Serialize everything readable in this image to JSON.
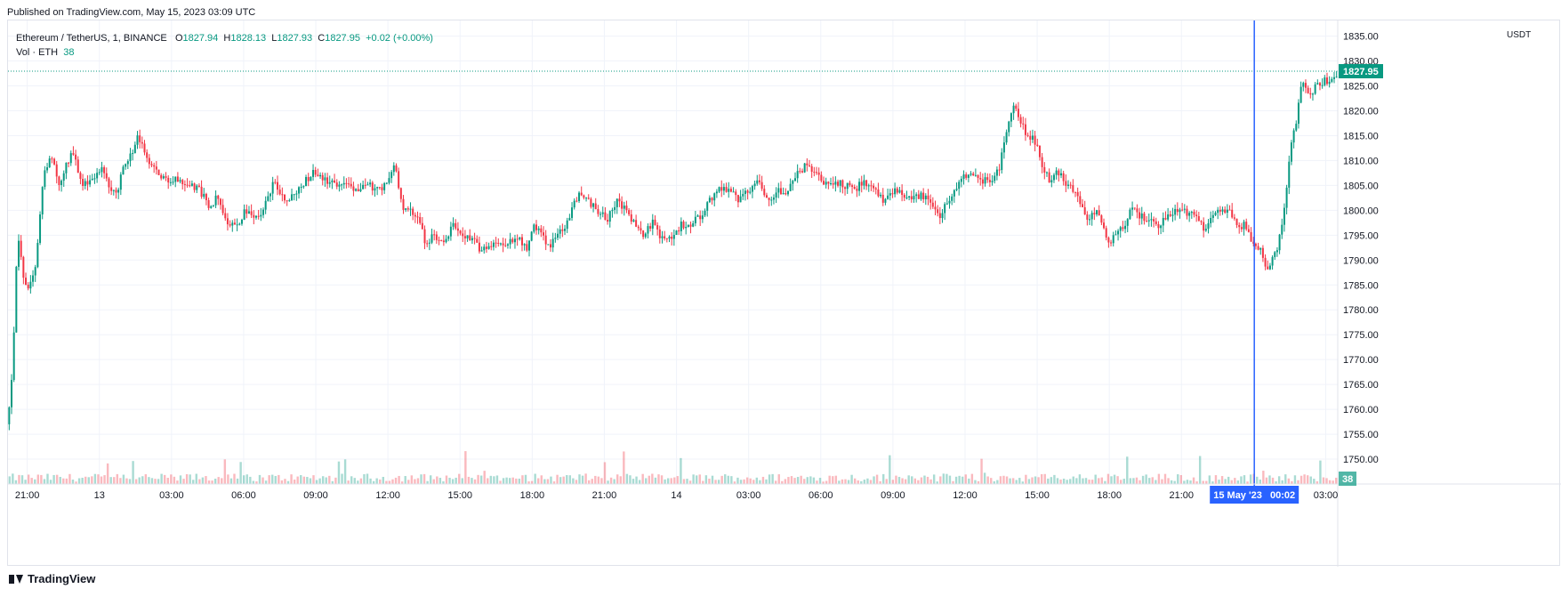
{
  "header": {
    "published": "Published on TradingView.com, May 15, 2023 03:09 UTC"
  },
  "legend": {
    "symbol": "Ethereum / TetherUS, 1, BINANCE",
    "o_label": "O",
    "o_value": "1827.94",
    "h_label": "H",
    "h_value": "1828.13",
    "l_label": "L",
    "l_value": "1827.93",
    "c_label": "C",
    "c_value": "1827.95",
    "change": "+0.02 (+0.00%)",
    "vol_label": "Vol · ETH",
    "vol_value": "38"
  },
  "price_axis": {
    "unit": "USDT",
    "last_price_label": "1827.95",
    "last_volume_label": "38"
  },
  "time_axis": {
    "crosshair_label": "15 May '23   00:02"
  },
  "footer": {
    "brand": "TradingView"
  },
  "colors": {
    "up": "#089981",
    "down": "#f23645",
    "crosshair": "#2962ff",
    "grid": "#f0f3fa",
    "last_price_line": "#089981"
  },
  "chart_data": {
    "type": "candlestick",
    "title": "Ethereum / TetherUS, 1, BINANCE",
    "ylabel": "USDT",
    "ylim": [
      1745,
      1836
    ],
    "y_ticks": [
      "1835.00",
      "1830.00",
      "1825.00",
      "1820.00",
      "1815.00",
      "1810.00",
      "1805.00",
      "1800.00",
      "1795.00",
      "1790.00",
      "1785.00",
      "1780.00",
      "1775.00",
      "1770.00",
      "1765.00",
      "1760.00",
      "1755.00",
      "1750.00"
    ],
    "x_ticks": [
      "21:00",
      "13",
      "03:00",
      "06:00",
      "09:00",
      "12:00",
      "15:00",
      "18:00",
      "21:00",
      "14",
      "03:00",
      "06:00",
      "09:00",
      "12:00",
      "15:00",
      "18:00",
      "21:00",
      "00:02",
      "03:00"
    ],
    "x_tick_hours": [
      0,
      3,
      6,
      9,
      12,
      15,
      18,
      21,
      24,
      27,
      30,
      33,
      36,
      39,
      42,
      45,
      48,
      51.03,
      54
    ],
    "x_range_hours": [
      -0.8,
      54.5
    ],
    "crosshair_hour": 51.03,
    "series": [
      {
        "name": "ETH/USDT price",
        "type": "candlestick-path",
        "points": [
          [
            -0.8,
            1757
          ],
          [
            -0.6,
            1770
          ],
          [
            -0.4,
            1795
          ],
          [
            -0.2,
            1788
          ],
          [
            0.0,
            1783
          ],
          [
            0.3,
            1787
          ],
          [
            0.7,
            1808
          ],
          [
            1.0,
            1811
          ],
          [
            1.3,
            1805
          ],
          [
            1.6,
            1809
          ],
          [
            1.9,
            1812
          ],
          [
            2.2,
            1806
          ],
          [
            2.5,
            1805
          ],
          [
            2.8,
            1807
          ],
          [
            3.1,
            1808
          ],
          [
            3.4,
            1805
          ],
          [
            3.7,
            1803
          ],
          [
            4.0,
            1809
          ],
          [
            4.3,
            1811
          ],
          [
            4.6,
            1815
          ],
          [
            4.9,
            1811
          ],
          [
            5.3,
            1808
          ],
          [
            5.8,
            1806
          ],
          [
            6.3,
            1806
          ],
          [
            6.8,
            1805
          ],
          [
            7.2,
            1804
          ],
          [
            7.6,
            1800
          ],
          [
            7.9,
            1803
          ],
          [
            8.3,
            1798
          ],
          [
            8.7,
            1797
          ],
          [
            9.1,
            1800
          ],
          [
            9.4,
            1798
          ],
          [
            9.8,
            1800
          ],
          [
            10.3,
            1806
          ],
          [
            10.7,
            1802
          ],
          [
            11.1,
            1803
          ],
          [
            11.6,
            1806
          ],
          [
            12.0,
            1808
          ],
          [
            12.4,
            1806
          ],
          [
            12.8,
            1805
          ],
          [
            13.3,
            1806
          ],
          [
            13.7,
            1804
          ],
          [
            14.2,
            1805
          ],
          [
            14.6,
            1804
          ],
          [
            15.0,
            1806
          ],
          [
            15.3,
            1809
          ],
          [
            15.6,
            1801
          ],
          [
            15.9,
            1800
          ],
          [
            16.2,
            1799
          ],
          [
            16.6,
            1793
          ],
          [
            16.9,
            1795
          ],
          [
            17.3,
            1793
          ],
          [
            17.7,
            1797
          ],
          [
            18.1,
            1795
          ],
          [
            18.5,
            1794
          ],
          [
            18.9,
            1792
          ],
          [
            19.2,
            1793
          ],
          [
            19.6,
            1794
          ],
          [
            20.0,
            1793
          ],
          [
            20.4,
            1795
          ],
          [
            20.8,
            1792
          ],
          [
            21.1,
            1797
          ],
          [
            21.4,
            1796
          ],
          [
            21.7,
            1792
          ],
          [
            22.0,
            1795
          ],
          [
            22.4,
            1797
          ],
          [
            22.7,
            1801
          ],
          [
            23.0,
            1804
          ],
          [
            23.3,
            1802
          ],
          [
            23.7,
            1800
          ],
          [
            24.1,
            1798
          ],
          [
            24.5,
            1802
          ],
          [
            24.9,
            1800
          ],
          [
            25.3,
            1797
          ],
          [
            25.7,
            1795
          ],
          [
            26.0,
            1798
          ],
          [
            26.4,
            1794
          ],
          [
            26.8,
            1794
          ],
          [
            27.2,
            1797
          ],
          [
            27.6,
            1797
          ],
          [
            28.0,
            1799
          ],
          [
            28.4,
            1802
          ],
          [
            28.8,
            1804
          ],
          [
            29.2,
            1804
          ],
          [
            29.6,
            1802
          ],
          [
            30.0,
            1804
          ],
          [
            30.4,
            1806
          ],
          [
            30.8,
            1802
          ],
          [
            31.2,
            1804
          ],
          [
            31.6,
            1804
          ],
          [
            32.0,
            1807
          ],
          [
            32.4,
            1809
          ],
          [
            32.8,
            1807
          ],
          [
            33.2,
            1805
          ],
          [
            33.6,
            1806
          ],
          [
            34.0,
            1805
          ],
          [
            34.4,
            1804
          ],
          [
            34.8,
            1806
          ],
          [
            35.2,
            1804
          ],
          [
            35.6,
            1802
          ],
          [
            36.0,
            1804
          ],
          [
            36.4,
            1803
          ],
          [
            36.8,
            1802
          ],
          [
            37.2,
            1803
          ],
          [
            37.6,
            1801
          ],
          [
            38.0,
            1799
          ],
          [
            38.4,
            1803
          ],
          [
            38.8,
            1806
          ],
          [
            39.2,
            1808
          ],
          [
            39.6,
            1806
          ],
          [
            40.0,
            1806
          ],
          [
            40.4,
            1808
          ],
          [
            40.7,
            1816
          ],
          [
            41.0,
            1821
          ],
          [
            41.3,
            1818
          ],
          [
            41.6,
            1815
          ],
          [
            41.9,
            1814
          ],
          [
            42.2,
            1809
          ],
          [
            42.5,
            1806
          ],
          [
            42.8,
            1808
          ],
          [
            43.1,
            1806
          ],
          [
            43.4,
            1805
          ],
          [
            43.8,
            1801
          ],
          [
            44.1,
            1798
          ],
          [
            44.4,
            1800
          ],
          [
            44.7,
            1797
          ],
          [
            45.0,
            1793
          ],
          [
            45.3,
            1796
          ],
          [
            45.6,
            1797
          ],
          [
            45.9,
            1800
          ],
          [
            46.3,
            1799
          ],
          [
            46.7,
            1798
          ],
          [
            47.0,
            1797
          ],
          [
            47.4,
            1799
          ],
          [
            47.8,
            1800
          ],
          [
            48.1,
            1800
          ],
          [
            48.4,
            1799
          ],
          [
            48.7,
            1798
          ],
          [
            49.0,
            1796
          ],
          [
            49.3,
            1799
          ],
          [
            49.6,
            1800
          ],
          [
            50.0,
            1800
          ],
          [
            50.4,
            1797
          ],
          [
            50.7,
            1797
          ],
          [
            51.0,
            1793
          ],
          [
            51.3,
            1792
          ],
          [
            51.6,
            1788
          ],
          [
            51.9,
            1791
          ],
          [
            52.2,
            1797
          ],
          [
            52.4,
            1806
          ],
          [
            52.6,
            1815
          ],
          [
            52.8,
            1818
          ],
          [
            53.0,
            1826
          ],
          [
            53.3,
            1823
          ],
          [
            53.6,
            1825
          ],
          [
            53.9,
            1826
          ],
          [
            54.2,
            1826
          ],
          [
            54.5,
            1827.95
          ]
        ]
      },
      {
        "name": "Vol · ETH",
        "type": "volume",
        "last_value": 38
      }
    ]
  }
}
